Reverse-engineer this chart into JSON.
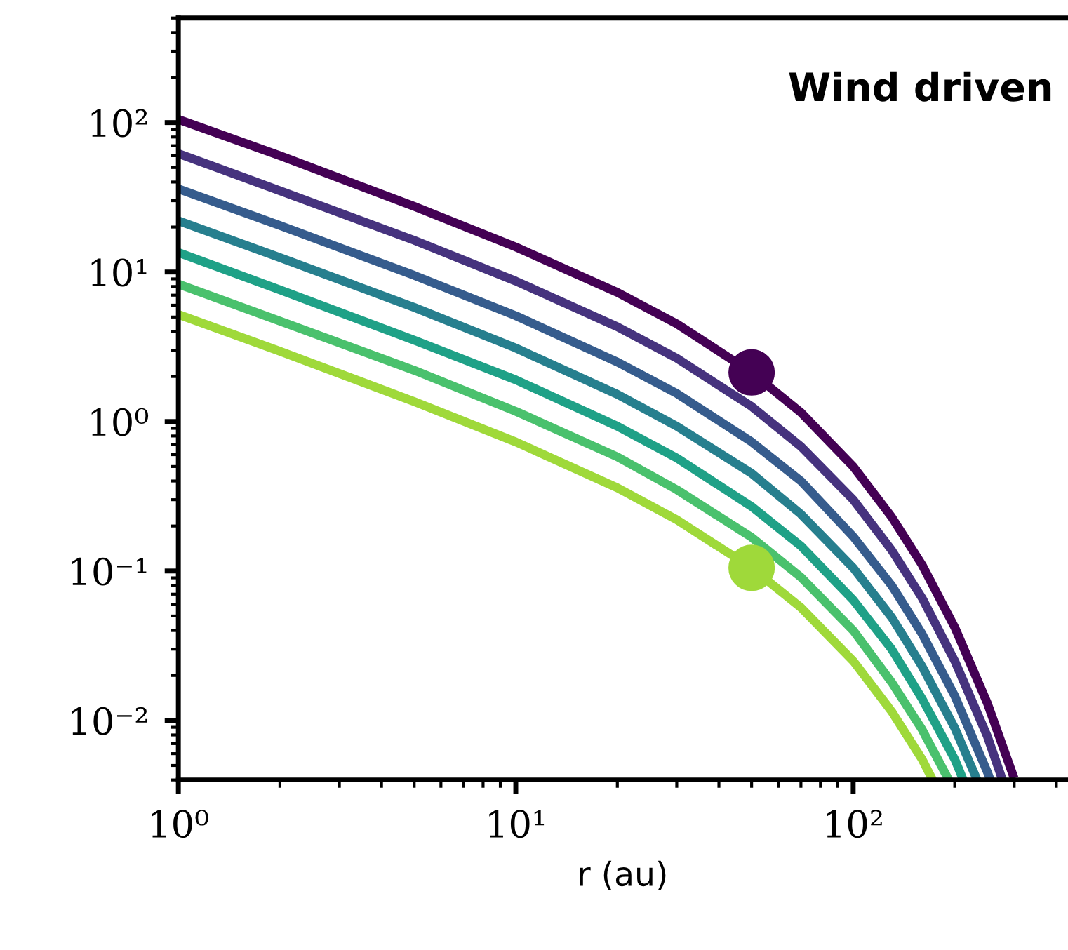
{
  "chart_data": {
    "type": "line",
    "xlabel": "r (au)",
    "annotations": [
      "Wind driven"
    ],
    "log": "xy",
    "xlim": [
      1,
      430
    ],
    "ylim": [
      0.004,
      500
    ],
    "xticks": [
      {
        "value": 1,
        "label": "10⁰"
      },
      {
        "value": 10,
        "label": "10¹"
      },
      {
        "value": 100,
        "label": "10²"
      }
    ],
    "yticks": [
      {
        "value": 0.01,
        "label": "10⁻²"
      },
      {
        "value": 0.1,
        "label": "10⁻¹"
      },
      {
        "value": 1,
        "label": "10⁰"
      },
      {
        "value": 10,
        "label": "10¹"
      },
      {
        "value": 100,
        "label": "10²"
      }
    ],
    "series": [
      {
        "color": "#440154",
        "x": [
          1,
          2,
          5,
          10,
          20,
          30,
          50,
          70,
          100,
          130,
          160,
          200,
          250,
          300
        ],
        "values": [
          105,
          60,
          27.5,
          14.7,
          7.3,
          4.5,
          2.13,
          1.15,
          0.5,
          0.23,
          0.11,
          0.042,
          0.013,
          0.0041
        ]
      },
      {
        "color": "#46337e",
        "x": [
          1,
          2,
          5,
          10,
          20,
          30,
          50,
          70,
          100,
          130,
          160,
          200,
          250,
          277
        ],
        "values": [
          62,
          35,
          16.3,
          8.7,
          4.3,
          2.65,
          1.26,
          0.68,
          0.3,
          0.138,
          0.066,
          0.025,
          0.0078,
          0.004
        ]
      },
      {
        "color": "#365c8d",
        "x": [
          1,
          2,
          5,
          10,
          20,
          30,
          50,
          70,
          100,
          130,
          160,
          200,
          250,
          255
        ],
        "values": [
          36,
          20.5,
          9.5,
          5.1,
          2.5,
          1.54,
          0.73,
          0.4,
          0.17,
          0.08,
          0.038,
          0.0146,
          0.0045,
          0.004
        ]
      },
      {
        "color": "#277f8e",
        "x": [
          1,
          2,
          5,
          10,
          20,
          30,
          50,
          70,
          100,
          130,
          160,
          200,
          233
        ],
        "values": [
          22,
          12.5,
          5.8,
          3.1,
          1.52,
          0.93,
          0.45,
          0.24,
          0.105,
          0.049,
          0.023,
          0.0089,
          0.004
        ]
      },
      {
        "color": "#1fa187",
        "x": [
          1,
          2,
          5,
          10,
          20,
          30,
          50,
          70,
          100,
          130,
          160,
          200,
          212
        ],
        "values": [
          13.5,
          7.6,
          3.5,
          1.9,
          0.93,
          0.57,
          0.27,
          0.147,
          0.064,
          0.03,
          0.014,
          0.0055,
          0.004
        ]
      },
      {
        "color": "#4ac16d",
        "x": [
          1,
          2,
          5,
          10,
          20,
          30,
          50,
          70,
          100,
          130,
          160,
          192
        ],
        "values": [
          8.3,
          4.7,
          2.2,
          1.17,
          0.58,
          0.35,
          0.168,
          0.091,
          0.04,
          0.018,
          0.0087,
          0.004
        ]
      },
      {
        "color": "#9fd93a",
        "x": [
          1,
          2,
          5,
          10,
          20,
          30,
          50,
          70,
          100,
          130,
          160,
          172
        ],
        "values": [
          5.2,
          2.95,
          1.36,
          0.73,
          0.36,
          0.22,
          0.105,
          0.057,
          0.025,
          0.0115,
          0.0055,
          0.004
        ]
      },
      {
        "type": "scatter",
        "color": "#440154",
        "marker": "circle",
        "x": [
          50
        ],
        "values": [
          2.13
        ]
      },
      {
        "type": "scatter",
        "color": "#9fd93a",
        "marker": "circle",
        "x": [
          50
        ],
        "values": [
          0.105
        ]
      }
    ]
  }
}
